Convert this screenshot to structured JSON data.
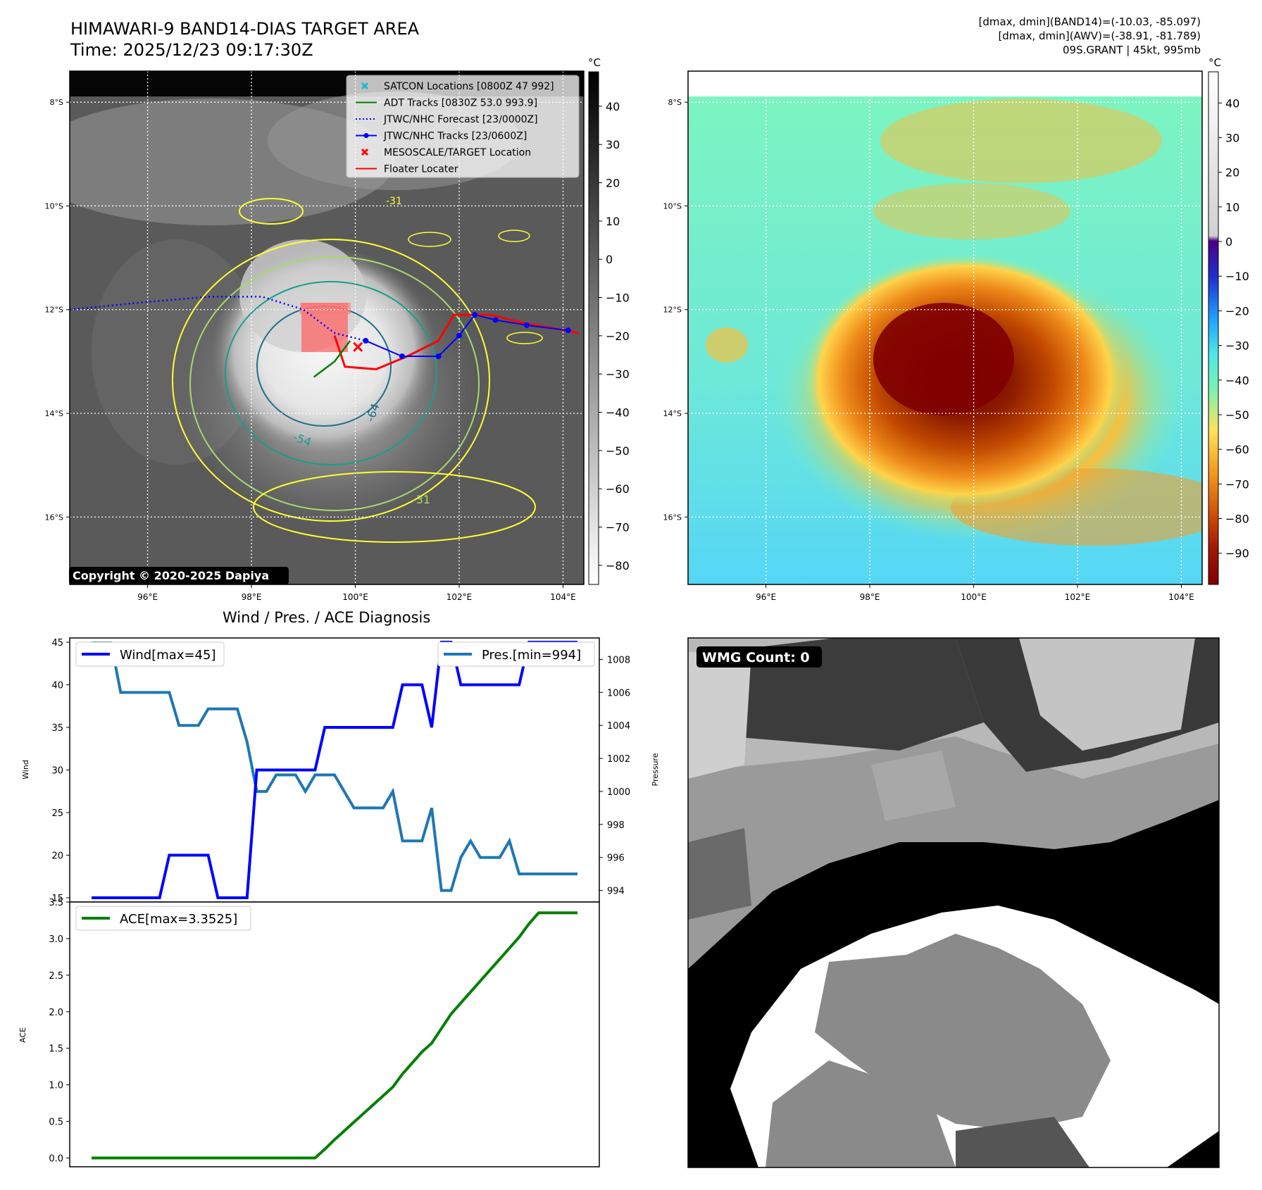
{
  "header": {
    "title_line1": "HIMAWARI-9 BAND14-DIAS TARGET AREA",
    "title_line2": "Time: 2025/12/23 09:17:30Z",
    "info_line1": "[dmax, dmin](BAND14)=(-10.03, -85.097)",
    "info_line2": "[dmax, dmin](AWV)=(-38.91, -81.789)",
    "info_line3": "09S.GRANT | 45kt, 995mb"
  },
  "map_axes": {
    "lat_labels": [
      "8°S",
      "10°S",
      "12°S",
      "14°S",
      "16°S"
    ],
    "lon_labels": [
      "96°E",
      "98°E",
      "100°E",
      "102°E",
      "104°E"
    ],
    "lat_values": [
      -8,
      -10,
      -12,
      -14,
      -16
    ],
    "lon_values": [
      96,
      98,
      100,
      102,
      104
    ],
    "lon_range": [
      94.5,
      104.4
    ],
    "lat_range": [
      -17.3,
      -7.4
    ]
  },
  "left_map": {
    "copyright": "Copyright © 2020-2025 Dapiya",
    "colorbar_unit": "°C",
    "colorbar_ticks": [
      40,
      30,
      20,
      10,
      0,
      -10,
      -20,
      -30,
      -40,
      -50,
      -60,
      -70,
      -80
    ],
    "colorbar_range": [
      -85,
      49
    ],
    "legend": [
      {
        "label": "SATCON Locations [0800Z 47 992]",
        "color": "#17becf",
        "marker": "x"
      },
      {
        "label": "ADT Tracks [0830Z 53.0 993.9]",
        "color": "#008000",
        "marker": "line"
      },
      {
        "label": "JTWC/NHC Forecast [23/0000Z]",
        "color": "#0000ff",
        "marker": "dotted"
      },
      {
        "label": "JTWC/NHC Tracks [23/0600Z]",
        "color": "#0000ff",
        "marker": "line-dot"
      },
      {
        "label": "MESOSCALE/TARGET Location",
        "color": "#ff0000",
        "marker": "x"
      },
      {
        "label": "Floater Locater",
        "color": "#ff0000",
        "marker": "line"
      }
    ],
    "contour_labels": [
      "-31",
      "-54",
      "-64",
      "-31"
    ],
    "forecast_track": [
      [
        94.5,
        -12.0
      ],
      [
        96,
        -11.85
      ],
      [
        97.2,
        -11.75
      ],
      [
        98.2,
        -11.75
      ],
      [
        99.0,
        -12.0
      ],
      [
        99.6,
        -12.45
      ],
      [
        100.2,
        -12.6
      ]
    ],
    "jtwc_track": [
      [
        100.2,
        -12.6
      ],
      [
        100.9,
        -12.9
      ],
      [
        101.6,
        -12.9
      ],
      [
        102.0,
        -12.5
      ],
      [
        102.3,
        -12.1
      ],
      [
        102.7,
        -12.2
      ],
      [
        103.3,
        -12.3
      ],
      [
        104.1,
        -12.4
      ]
    ],
    "floater_track": [
      [
        99.6,
        -12.5
      ],
      [
        99.8,
        -13.1
      ],
      [
        100.4,
        -13.15
      ],
      [
        101.0,
        -12.9
      ],
      [
        101.6,
        -12.6
      ],
      [
        101.9,
        -12.1
      ],
      [
        102.6,
        -12.1
      ],
      [
        103.2,
        -12.25
      ],
      [
        104.3,
        -12.45
      ]
    ],
    "adt_track": [
      [
        99.2,
        -13.3
      ],
      [
        99.6,
        -13.0
      ],
      [
        99.9,
        -12.6
      ]
    ],
    "target_location": [
      100.05,
      -12.72
    ]
  },
  "right_map": {
    "colorbar_unit": "°C",
    "colorbar_ticks": [
      40,
      30,
      20,
      10,
      0,
      -10,
      -20,
      -30,
      -40,
      -50,
      -60,
      -70,
      -80,
      -90
    ],
    "colorbar_range": [
      -99,
      49
    ]
  },
  "diag_title": "Wind / Pres. / ACE Diagnosis",
  "wmg_label": "WMG Count: 0",
  "chart_data": [
    {
      "type": "line",
      "title": "Wind / Pres. / ACE Diagnosis",
      "ylabel": "Wind",
      "y2label": "Pressure",
      "ylim": [
        14.5,
        45.5
      ],
      "y2lim": [
        993.3,
        1009.3
      ],
      "yticks": [
        15,
        20,
        25,
        30,
        35,
        40,
        45
      ],
      "y2ticks": [
        994,
        996,
        998,
        1000,
        1002,
        1004,
        1006,
        1008
      ],
      "x": [
        0,
        1,
        2,
        3,
        4,
        5,
        6,
        7,
        8,
        9,
        10,
        11,
        12,
        13,
        14,
        15,
        16,
        17,
        18,
        19,
        20,
        21,
        22,
        23,
        24,
        25,
        26,
        27,
        28,
        29,
        30,
        31,
        32,
        33,
        34,
        35,
        36,
        37,
        38,
        39,
        40,
        41,
        42,
        43,
        44,
        45,
        46,
        47,
        48,
        49,
        50
      ],
      "series": [
        {
          "name": "Wind[max=45]",
          "axis": "left",
          "color": "#0000ff",
          "values": [
            15,
            15,
            15,
            15,
            15,
            15,
            15,
            15,
            20,
            20,
            20,
            20,
            20,
            15,
            15,
            15,
            15,
            30,
            30,
            30,
            30,
            30,
            30,
            30,
            35,
            35,
            35,
            35,
            35,
            35,
            35,
            35,
            40,
            40,
            40,
            35,
            45,
            45,
            40,
            40,
            40,
            40,
            40,
            40,
            40,
            45,
            45,
            45,
            45,
            45,
            45
          ]
        },
        {
          "name": "Pres.[min=994]",
          "axis": "right",
          "color": "#1f77b4",
          "values": [
            1009,
            1009,
            1009,
            1006,
            1006,
            1006,
            1006,
            1006,
            1006,
            1004,
            1004,
            1004,
            1005,
            1005,
            1005,
            1005,
            1003,
            1000,
            1000,
            1001,
            1001,
            1001,
            1000,
            1001,
            1001,
            1001,
            1000,
            999,
            999,
            999,
            999,
            1000,
            997,
            997,
            997,
            999,
            994,
            994,
            996,
            997,
            996,
            996,
            996,
            997,
            995,
            995,
            995,
            995,
            995,
            995,
            995
          ]
        }
      ]
    },
    {
      "type": "line",
      "ylabel": "ACE",
      "ylim": [
        -0.12,
        3.5
      ],
      "yticks": [
        0.0,
        0.5,
        1.0,
        1.5,
        2.0,
        2.5,
        3.0,
        3.5
      ],
      "ytick_labels": [
        "0.0",
        "0.5",
        "1.0",
        "1.5",
        "2.0",
        "2.5",
        "3.0",
        "3.5"
      ],
      "x": [
        0,
        1,
        2,
        3,
        4,
        5,
        6,
        7,
        8,
        9,
        10,
        11,
        12,
        13,
        14,
        15,
        16,
        17,
        18,
        19,
        20,
        21,
        22,
        23,
        24,
        25,
        26,
        27,
        28,
        29,
        30,
        31,
        32,
        33,
        34,
        35,
        36,
        37,
        38,
        39,
        40,
        41,
        42,
        43,
        44,
        45,
        46,
        47,
        48,
        49,
        50
      ],
      "series": [
        {
          "name": "ACE[max=3.3525]",
          "color": "#008000",
          "values": [
            0,
            0,
            0,
            0,
            0,
            0,
            0,
            0,
            0,
            0,
            0,
            0,
            0,
            0,
            0,
            0,
            0,
            0,
            0,
            0,
            0,
            0,
            0,
            0,
            0.12,
            0.25,
            0.37,
            0.49,
            0.61,
            0.73,
            0.85,
            0.97,
            1.15,
            1.3,
            1.45,
            1.57,
            1.77,
            1.97,
            2.12,
            2.27,
            2.42,
            2.57,
            2.72,
            2.87,
            3.02,
            3.2,
            3.3525,
            3.3525,
            3.3525,
            3.3525,
            3.3525
          ]
        }
      ]
    }
  ]
}
